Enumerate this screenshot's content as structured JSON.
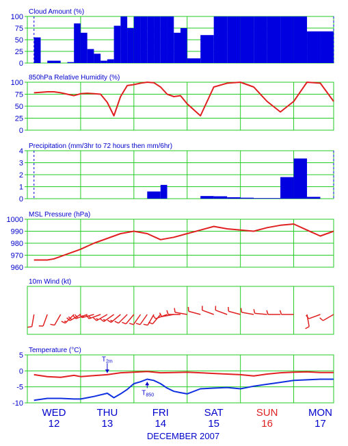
{
  "colors": {
    "frame": "#22cc22",
    "title": "#0000cc",
    "tick": "#0000cc",
    "bar": "#0000e0",
    "line": "#e02020",
    "dew": "#1030e0",
    "weekday": "#0000cc",
    "weekend": "#e02020",
    "annot": "#0000cc"
  },
  "days": [
    {
      "name": "WED",
      "date": "12",
      "weekend": false
    },
    {
      "name": "THU",
      "date": "13",
      "weekend": false
    },
    {
      "name": "FRI",
      "date": "14",
      "weekend": false
    },
    {
      "name": "SAT",
      "date": "15",
      "weekend": false
    },
    {
      "name": "SUN",
      "date": "16",
      "weekend": true
    },
    {
      "name": "MON",
      "date": "17",
      "weekend": false
    }
  ],
  "footer": "DECEMBER 2007",
  "chart_data": [
    {
      "type": "bar",
      "title": "Cloud Amount (%)",
      "ylim": [
        0,
        100
      ],
      "yticks": [
        0,
        25,
        50,
        75,
        100
      ],
      "x_unit": "hours from Wed 12 00h",
      "series": [
        {
          "x_start": [
            3,
            6,
            9,
            12,
            15,
            18,
            21,
            24,
            27,
            30,
            33,
            36,
            39,
            42,
            45,
            48,
            51,
            54,
            57,
            60,
            63,
            66,
            69,
            72,
            78,
            84,
            90,
            96,
            102,
            108,
            114,
            120,
            126,
            132
          ],
          "x_end": [
            6,
            9,
            12,
            15,
            18,
            21,
            24,
            27,
            30,
            33,
            36,
            39,
            42,
            45,
            48,
            51,
            54,
            57,
            60,
            63,
            66,
            69,
            72,
            78,
            84,
            90,
            96,
            102,
            108,
            114,
            120,
            126,
            132,
            138
          ],
          "values": [
            55,
            0,
            5,
            5,
            0,
            2,
            85,
            65,
            30,
            20,
            5,
            8,
            80,
            100,
            75,
            100,
            100,
            100,
            100,
            100,
            100,
            65,
            75,
            10,
            60,
            100,
            100,
            100,
            100,
            100,
            100,
            100,
            68,
            68
          ]
        }
      ],
      "dashed_x": [
        3,
        138
      ]
    },
    {
      "type": "line",
      "title": "850hPa Relative Humidity (%)",
      "ylim": [
        0,
        100
      ],
      "yticks": [
        0,
        25,
        50,
        75,
        100
      ],
      "series": [
        {
          "x": [
            3,
            6,
            9,
            12,
            15,
            18,
            21,
            24,
            27,
            30,
            33,
            36,
            39,
            42,
            45,
            48,
            51,
            54,
            57,
            60,
            63,
            66,
            69,
            72,
            78,
            84,
            90,
            96,
            102,
            108,
            114,
            120,
            126,
            132,
            138
          ],
          "y": [
            78,
            79,
            80,
            80,
            78,
            75,
            72,
            76,
            77,
            76,
            75,
            58,
            30,
            70,
            93,
            95,
            98,
            100,
            99,
            90,
            75,
            70,
            72,
            55,
            30,
            90,
            98,
            100,
            90,
            60,
            38,
            60,
            100,
            98,
            60
          ]
        }
      ]
    },
    {
      "type": "bar",
      "title": "Precipitation (mm/3hr to 72 hours then mm/6hr)",
      "ylim": [
        0,
        4
      ],
      "yticks": [
        0,
        1,
        2,
        3,
        4
      ],
      "series": [
        {
          "x_start": [
            54,
            60,
            78,
            84,
            90,
            96,
            102,
            114,
            120,
            126
          ],
          "x_end": [
            60,
            63,
            84,
            90,
            96,
            102,
            114,
            120,
            126,
            132
          ],
          "values": [
            0.6,
            1.15,
            0.22,
            0.2,
            0.12,
            0.08,
            0.05,
            1.8,
            3.35,
            0.15
          ]
        }
      ],
      "dashed_x": [
        3,
        138
      ]
    },
    {
      "type": "line",
      "title": "MSL Pressure (hPa)",
      "ylim": [
        960,
        1000
      ],
      "yticks": [
        960,
        970,
        980,
        990,
        1000
      ],
      "series": [
        {
          "x": [
            3,
            6,
            9,
            12,
            15,
            18,
            21,
            24,
            30,
            36,
            42,
            48,
            54,
            60,
            66,
            72,
            78,
            84,
            90,
            96,
            102,
            108,
            114,
            120,
            126,
            132,
            138
          ],
          "y": [
            966,
            966,
            966,
            967,
            969,
            971,
            973,
            975,
            980,
            984,
            988,
            990,
            988,
            983,
            985,
            988,
            991,
            994,
            992,
            991,
            990,
            993,
            995,
            996,
            991,
            986,
            990
          ]
        }
      ]
    },
    {
      "type": "wind",
      "title": "10m Wind (kt)",
      "ylim": [
        -2,
        2
      ],
      "series": [
        {
          "x": [
            3,
            9,
            15,
            21,
            24,
            27,
            30,
            33,
            36,
            39,
            42,
            45,
            48,
            51,
            54,
            57,
            60,
            63,
            66,
            69,
            72,
            78,
            84,
            90,
            96,
            102,
            108,
            114,
            120,
            126,
            132,
            138
          ],
          "dir": [
            190,
            200,
            210,
            225,
            240,
            250,
            255,
            250,
            240,
            235,
            230,
            225,
            220,
            215,
            215,
            210,
            220,
            250,
            260,
            270,
            280,
            285,
            290,
            290,
            285,
            280,
            275,
            270,
            270,
            170,
            250,
            240
          ],
          "speed": [
            12,
            10,
            12,
            18,
            22,
            20,
            18,
            16,
            16,
            15,
            15,
            14,
            14,
            14,
            13,
            12,
            12,
            12,
            10,
            10,
            10,
            10,
            10,
            12,
            12,
            12,
            10,
            10,
            10,
            12,
            14,
            14
          ]
        }
      ]
    },
    {
      "type": "line",
      "title": "Temperature (°C)",
      "ylim": [
        -10,
        5
      ],
      "yticks": [
        -10,
        -5,
        0,
        5
      ],
      "series": [
        {
          "name": "T2m",
          "x": [
            3,
            9,
            15,
            21,
            24,
            30,
            36,
            42,
            48,
            54,
            60,
            66,
            72,
            78,
            84,
            90,
            96,
            102,
            108,
            114,
            120,
            126,
            132,
            138
          ],
          "y": [
            -1.2,
            -1.8,
            -2.0,
            -1.4,
            -1.8,
            -1.5,
            -1.2,
            -0.6,
            -0.4,
            -0.2,
            -0.6,
            -0.5,
            -0.4,
            -0.6,
            -0.8,
            -1.0,
            -1.2,
            -1.6,
            -1.0,
            -0.6,
            -0.4,
            -0.3,
            -0.5,
            -0.5
          ]
        },
        {
          "name": "T850",
          "x": [
            3,
            9,
            15,
            21,
            24,
            30,
            36,
            39,
            42,
            45,
            48,
            51,
            54,
            57,
            60,
            63,
            66,
            69,
            72,
            78,
            84,
            90,
            96,
            102,
            108,
            114,
            120,
            126,
            132,
            138
          ],
          "y": [
            -9.2,
            -8.6,
            -8.6,
            -8.8,
            -8.8,
            -8.0,
            -7.0,
            -8.4,
            -7.2,
            -5.8,
            -4.0,
            -3.4,
            -2.6,
            -3.0,
            -4.0,
            -5.4,
            -6.4,
            -6.8,
            -7.2,
            -5.6,
            -5.4,
            -5.2,
            -5.6,
            -4.8,
            -4.2,
            -3.6,
            -3.0,
            -2.8,
            -2.6,
            -2.6
          ]
        }
      ],
      "annotations": [
        {
          "label": "T2m",
          "text": "T",
          "sub": "2m",
          "x": 36,
          "y": -1.3,
          "side": "above"
        },
        {
          "label": "T850",
          "text": "T",
          "sub": "850",
          "x": 54,
          "y": -2.8,
          "side": "below"
        }
      ]
    }
  ]
}
